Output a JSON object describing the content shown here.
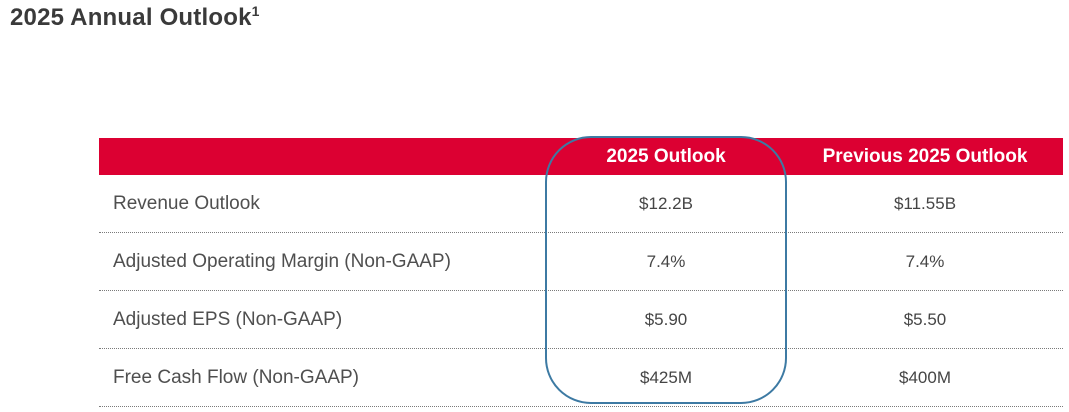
{
  "slide": {
    "title": "2025 Annual Outlook",
    "title_footnote": "1"
  },
  "table": {
    "columns": [
      {
        "label": ""
      },
      {
        "label": "2025 Outlook",
        "highlighted": true
      },
      {
        "label": "Previous 2025 Outlook",
        "highlighted": false
      }
    ],
    "rows": [
      {
        "label": "Revenue Outlook",
        "outlook": "$12.2B",
        "previous": "$11.55B"
      },
      {
        "label": "Adjusted Operating Margin (Non-GAAP)",
        "outlook": "7.4%",
        "previous": "7.4%"
      },
      {
        "label": "Adjusted EPS (Non-GAAP)",
        "outlook": "$5.90",
        "previous": "$5.50"
      },
      {
        "label": "Free Cash Flow (Non-GAAP)",
        "outlook": "$425M",
        "previous": "$400M"
      }
    ]
  },
  "colors": {
    "header_red": "#dc0032",
    "highlight_outline_blue": "#3d7aa3",
    "title_text": "#3a3a3a",
    "row_text": "#4f4f4f",
    "divider_dotted": "#7a7a7a"
  }
}
